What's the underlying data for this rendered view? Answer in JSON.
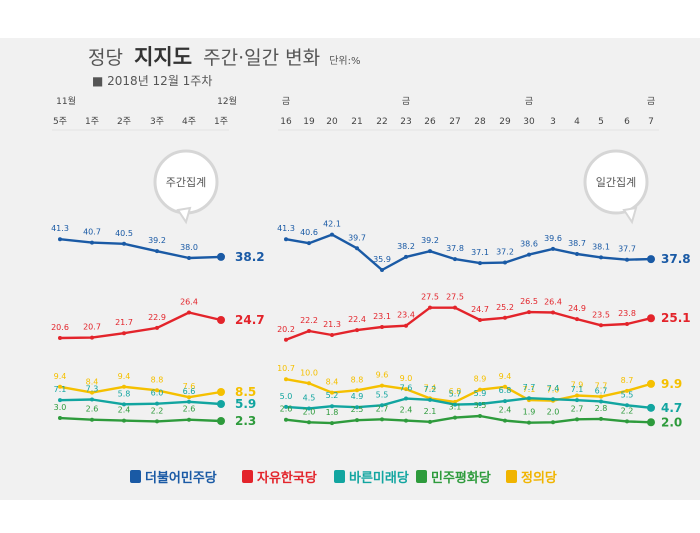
{
  "title": {
    "prefix": "정당",
    "bold": "지지도",
    "suffix": "주간·일간 변화",
    "unit": "단위:%"
  },
  "subtitle": "■ 2018년 12월 1주차",
  "weekly_label": "주간집계",
  "daily_label": "일간집계",
  "legend": [
    {
      "name": "더불어민주당",
      "color": "#1a5aa5"
    },
    {
      "name": "자유한국당",
      "color": "#e3242b"
    },
    {
      "name": "바른미래당",
      "color": "#12a5a0"
    },
    {
      "name": "민주평화당",
      "color": "#2e9b3c"
    },
    {
      "name": "정의당",
      "color": "#f0b400"
    }
  ],
  "chart_data": [
    {
      "type": "line",
      "name": "weekly",
      "x_month_labels": [
        "11월",
        "",
        "",
        "",
        "",
        "12월"
      ],
      "x": [
        "5주",
        "1주",
        "2주",
        "3주",
        "4주",
        "1주"
      ],
      "series": [
        {
          "name": "더불어민주당",
          "color": "#1a5aa5",
          "values": [
            41.3,
            40.7,
            40.5,
            39.2,
            38.0,
            38.2
          ],
          "labels": [
            "41.3",
            "40.7",
            "40.5",
            "39.2",
            "38.0",
            "38.2"
          ]
        },
        {
          "name": "자유한국당",
          "color": "#e3242b",
          "values": [
            20.6,
            20.7,
            21.7,
            22.9,
            26.4,
            24.7
          ],
          "labels": [
            "20.6",
            "20.7",
            "21.7",
            "22.9",
            "26.4",
            "24.7"
          ]
        },
        {
          "name": "정의당",
          "color": "#f5c000",
          "values": [
            9.4,
            8.4,
            9.4,
            8.8,
            7.6,
            8.5
          ],
          "labels": [
            "9.4",
            "8.4",
            "9.4",
            "8.8",
            "7.6",
            "8.5"
          ]
        },
        {
          "name": "바른미래당",
          "color": "#12a5a0",
          "values": [
            7.1,
            7.3,
            5.8,
            6.0,
            6.6,
            5.9
          ],
          "labels": [
            "7.1",
            "7.3",
            "5.8",
            "6.0",
            "6.6",
            "5.9"
          ]
        },
        {
          "name": "민주평화당",
          "color": "#2e9b3c",
          "values": [
            3.0,
            2.6,
            2.4,
            2.2,
            2.6,
            2.3
          ],
          "labels": [
            "3.0",
            "2.6",
            "2.4",
            "2.2",
            "2.6",
            "2.3"
          ]
        }
      ]
    },
    {
      "type": "line",
      "name": "daily",
      "x_day_labels": [
        "금",
        "",
        "",
        "",
        "",
        "금",
        "",
        "",
        "",
        "",
        "금",
        "",
        "",
        "",
        "",
        "금"
      ],
      "x": [
        "16",
        "19",
        "20",
        "21",
        "22",
        "23",
        "26",
        "27",
        "28",
        "29",
        "30",
        "3",
        "4",
        "5",
        "6",
        "7"
      ],
      "series": [
        {
          "name": "더불어민주당",
          "color": "#1a5aa5",
          "values": [
            41.3,
            40.6,
            42.1,
            39.7,
            35.9,
            38.2,
            39.2,
            37.8,
            37.1,
            37.2,
            38.6,
            39.6,
            38.7,
            38.1,
            37.7,
            37.8
          ],
          "labels": [
            "41.3",
            "40.6",
            "42.1",
            "39.7",
            "35.9",
            "38.2",
            "39.2",
            "37.8",
            "37.1",
            "37.2",
            "38.6",
            "39.6",
            "38.7",
            "38.1",
            "37.7",
            "37.8"
          ]
        },
        {
          "name": "자유한국당",
          "color": "#e3242b",
          "values": [
            20.2,
            22.2,
            21.3,
            22.4,
            23.1,
            23.4,
            27.5,
            27.5,
            24.7,
            25.2,
            26.5,
            26.4,
            24.9,
            23.5,
            23.8,
            25.1
          ],
          "labels": [
            "20.2",
            "22.2",
            "21.3",
            "22.4",
            "23.1",
            "23.4",
            "27.5",
            "27.5",
            "24.7",
            "25.2",
            "26.5",
            "26.4",
            "24.9",
            "23.5",
            "23.8",
            "25.1"
          ]
        },
        {
          "name": "정의당",
          "color": "#f5c000",
          "values": [
            10.7,
            10.0,
            8.4,
            8.8,
            9.6,
            9.0,
            7.4,
            6.8,
            8.9,
            9.4,
            7.1,
            7.0,
            7.9,
            7.7,
            8.7,
            9.9
          ],
          "labels": [
            "10.7",
            "10.0",
            "8.4",
            "8.8",
            "9.6",
            "9.0",
            "7.4",
            "6.8",
            "8.9",
            "9.4",
            "7.1",
            "7.0",
            "7.9",
            "7.7",
            "8.7",
            "9.9"
          ]
        },
        {
          "name": "바른미래당",
          "color": "#12a5a0",
          "values": [
            5.0,
            4.5,
            5.2,
            4.9,
            5.5,
            7.6,
            7.2,
            5.7,
            5.9,
            6.8,
            7.7,
            7.4,
            7.1,
            6.7,
            5.5,
            4.7
          ],
          "labels": [
            "5.0",
            "4.5",
            "5.2",
            "4.9",
            "5.5",
            "7.6",
            "7.2",
            "5.7",
            "5.9",
            "6.8",
            "7.7",
            "7.4",
            "7.1",
            "6.7",
            "5.5",
            "4.7"
          ]
        },
        {
          "name": "민주평화당",
          "color": "#2e9b3c",
          "values": [
            2.6,
            2.0,
            1.8,
            2.5,
            2.7,
            2.4,
            2.1,
            3.1,
            3.5,
            2.4,
            1.9,
            2.0,
            2.7,
            2.8,
            2.2,
            2.0
          ],
          "labels": [
            "2.6",
            "2.0",
            "1.8",
            "2.5",
            "2.7",
            "2.4",
            "2.1",
            "3.1",
            "3.5",
            "2.4",
            "1.9",
            "2.0",
            "2.7",
            "2.8",
            "2.2",
            "2.0"
          ]
        }
      ]
    }
  ]
}
